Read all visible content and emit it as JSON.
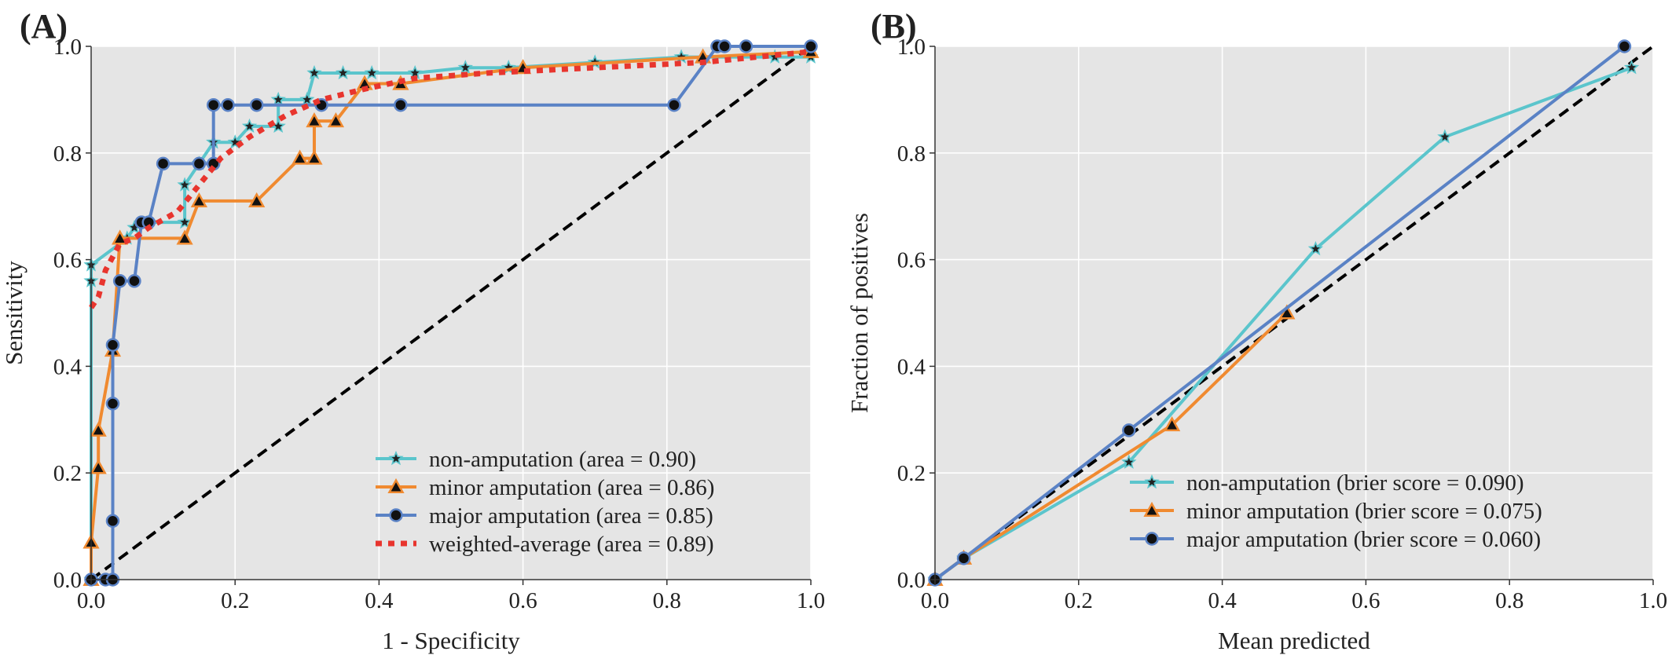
{
  "colors": {
    "non": "#5bc5cc",
    "minor": "#f08a30",
    "major": "#5a82c5",
    "weighted": "#e8352e",
    "diag": "#000000",
    "panel_bg": "#e5e5e5",
    "grid": "#ffffff"
  },
  "chart_data": [
    {
      "panel_label": "(A)",
      "type": "line",
      "xlabel": "1 - Specificity",
      "ylabel": "Sensitivity",
      "xlim": [
        0,
        1
      ],
      "ylim": [
        0,
        1
      ],
      "xticks": [
        "0.0",
        "0.2",
        "0.4",
        "0.6",
        "0.8",
        "1.0"
      ],
      "yticks": [
        "0.0",
        "0.2",
        "0.4",
        "0.6",
        "0.8",
        "1.0"
      ],
      "grid": true,
      "legend_position": "lower-right",
      "diagonal": true,
      "series": [
        {
          "key": "non",
          "name": "non-amputation (area = 0.90)",
          "marker": "star",
          "dashed": false,
          "points": [
            [
              0,
              0
            ],
            [
              0,
              0.56
            ],
            [
              0,
              0.59
            ],
            [
              0.05,
              0.64
            ],
            [
              0.06,
              0.66
            ],
            [
              0.08,
              0.67
            ],
            [
              0.13,
              0.67
            ],
            [
              0.13,
              0.74
            ],
            [
              0.15,
              0.78
            ],
            [
              0.17,
              0.82
            ],
            [
              0.2,
              0.82
            ],
            [
              0.22,
              0.85
            ],
            [
              0.26,
              0.85
            ],
            [
              0.26,
              0.9
            ],
            [
              0.3,
              0.9
            ],
            [
              0.31,
              0.95
            ],
            [
              0.35,
              0.95
            ],
            [
              0.39,
              0.95
            ],
            [
              0.45,
              0.95
            ],
            [
              0.52,
              0.96
            ],
            [
              0.58,
              0.96
            ],
            [
              0.7,
              0.97
            ],
            [
              0.82,
              0.98
            ],
            [
              0.95,
              0.98
            ],
            [
              1.0,
              0.98
            ]
          ]
        },
        {
          "key": "minor",
          "name": "minor amputation (area = 0.86)",
          "marker": "triangle",
          "dashed": false,
          "points": [
            [
              0,
              0
            ],
            [
              0,
              0.07
            ],
            [
              0.01,
              0.21
            ],
            [
              0.01,
              0.28
            ],
            [
              0.03,
              0.43
            ],
            [
              0.04,
              0.64
            ],
            [
              0.13,
              0.64
            ],
            [
              0.15,
              0.71
            ],
            [
              0.23,
              0.71
            ],
            [
              0.29,
              0.79
            ],
            [
              0.31,
              0.79
            ],
            [
              0.31,
              0.86
            ],
            [
              0.34,
              0.86
            ],
            [
              0.38,
              0.93
            ],
            [
              0.43,
              0.93
            ],
            [
              0.6,
              0.96
            ],
            [
              0.85,
              0.98
            ],
            [
              1.0,
              0.99
            ]
          ]
        },
        {
          "key": "major",
          "name": "major amputation (area = 0.85)",
          "marker": "circle",
          "dashed": false,
          "points": [
            [
              0,
              0
            ],
            [
              0.02,
              0
            ],
            [
              0.03,
              0
            ],
            [
              0.03,
              0.11
            ],
            [
              0.03,
              0.33
            ],
            [
              0.03,
              0.44
            ],
            [
              0.04,
              0.56
            ],
            [
              0.06,
              0.56
            ],
            [
              0.07,
              0.67
            ],
            [
              0.08,
              0.67
            ],
            [
              0.1,
              0.78
            ],
            [
              0.15,
              0.78
            ],
            [
              0.17,
              0.78
            ],
            [
              0.17,
              0.89
            ],
            [
              0.19,
              0.89
            ],
            [
              0.23,
              0.89
            ],
            [
              0.32,
              0.89
            ],
            [
              0.43,
              0.89
            ],
            [
              0.81,
              0.89
            ],
            [
              0.87,
              1.0
            ],
            [
              0.88,
              1.0
            ],
            [
              0.91,
              1.0
            ],
            [
              1.0,
              1.0
            ]
          ]
        },
        {
          "key": "weighted",
          "name": "weighted-average (area = 0.89)",
          "marker": "none",
          "dashed": true,
          "points": [
            [
              0,
              0.51
            ],
            [
              0.01,
              0.53
            ],
            [
              0.02,
              0.58
            ],
            [
              0.04,
              0.63
            ],
            [
              0.06,
              0.64
            ],
            [
              0.08,
              0.66
            ],
            [
              0.12,
              0.69
            ],
            [
              0.15,
              0.74
            ],
            [
              0.18,
              0.79
            ],
            [
              0.22,
              0.83
            ],
            [
              0.27,
              0.87
            ],
            [
              0.32,
              0.9
            ],
            [
              0.38,
              0.92
            ],
            [
              0.45,
              0.94
            ],
            [
              0.55,
              0.95
            ],
            [
              0.7,
              0.96
            ],
            [
              0.85,
              0.97
            ],
            [
              1.0,
              0.99
            ]
          ]
        }
      ]
    },
    {
      "panel_label": "(B)",
      "type": "line",
      "xlabel": "Mean predicted",
      "ylabel": "Fraction of positives",
      "xlim": [
        0,
        1
      ],
      "ylim": [
        0,
        1
      ],
      "xticks": [
        "0.0",
        "0.2",
        "0.4",
        "0.6",
        "0.8",
        "1.0"
      ],
      "yticks": [
        "0.0",
        "0.2",
        "0.4",
        "0.6",
        "0.8",
        "1.0"
      ],
      "grid": true,
      "legend_position": "lower-right",
      "diagonal": true,
      "series": [
        {
          "key": "non",
          "name": "non-amputation (brier score = 0.090)",
          "marker": "star",
          "dashed": false,
          "points": [
            [
              0,
              0
            ],
            [
              0.04,
              0.04
            ],
            [
              0.27,
              0.22
            ],
            [
              0.53,
              0.62
            ],
            [
              0.71,
              0.83
            ],
            [
              0.97,
              0.96
            ]
          ]
        },
        {
          "key": "minor",
          "name": "minor amputation (brier score = 0.075)",
          "marker": "triangle",
          "dashed": false,
          "points": [
            [
              0,
              0
            ],
            [
              0.04,
              0.04
            ],
            [
              0.33,
              0.29
            ],
            [
              0.49,
              0.5
            ]
          ]
        },
        {
          "key": "major",
          "name": "major amputation (brier score = 0.060)",
          "marker": "circle",
          "dashed": false,
          "points": [
            [
              0,
              0
            ],
            [
              0.04,
              0.04
            ],
            [
              0.27,
              0.28
            ],
            [
              0.96,
              1.0
            ]
          ]
        }
      ]
    }
  ]
}
